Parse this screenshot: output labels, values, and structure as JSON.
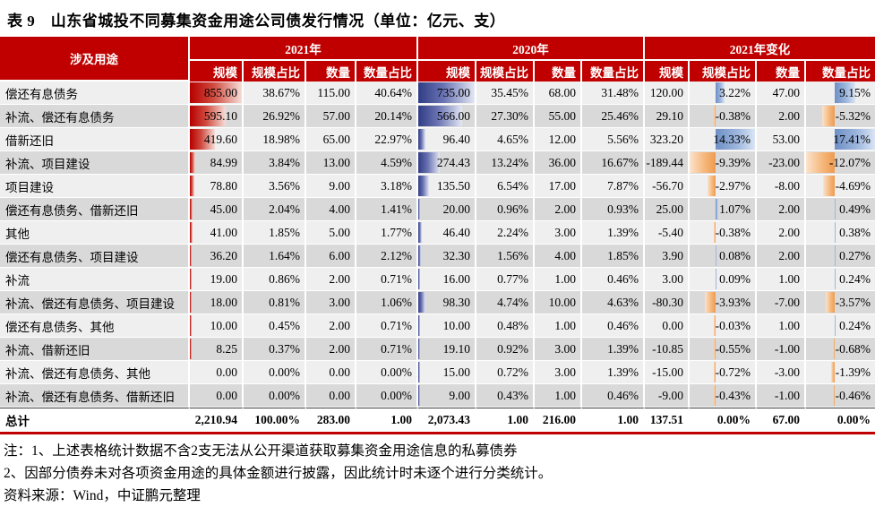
{
  "title": "表 9　山东省城投不同募集资金用途公司债发行情况（单位：亿元、支）",
  "table": {
    "category_header": "涉及用途",
    "groups": [
      "2021年",
      "2020年",
      "2021年变化"
    ],
    "subcols": [
      "规模",
      "规模占比",
      "数量",
      "数量占比"
    ],
    "rows": [
      {
        "use": "偿还有息债务",
        "v2021": [
          "855.00",
          "38.67%",
          "115.00",
          "40.64%"
        ],
        "v2020": [
          "735.00",
          "35.45%",
          "68.00",
          "31.48%"
        ],
        "change": [
          "120.00",
          "3.22%",
          "47.00",
          "9.15%"
        ]
      },
      {
        "use": "补流、偿还有息债务",
        "v2021": [
          "595.10",
          "26.92%",
          "57.00",
          "20.14%"
        ],
        "v2020": [
          "566.00",
          "27.30%",
          "55.00",
          "25.46%"
        ],
        "change": [
          "29.10",
          "-0.38%",
          "2.00",
          "-5.32%"
        ]
      },
      {
        "use": "借新还旧",
        "v2021": [
          "419.60",
          "18.98%",
          "65.00",
          "22.97%"
        ],
        "v2020": [
          "96.40",
          "4.65%",
          "12.00",
          "5.56%"
        ],
        "change": [
          "323.20",
          "14.33%",
          "53.00",
          "17.41%"
        ]
      },
      {
        "use": "补流、项目建设",
        "v2021": [
          "84.99",
          "3.84%",
          "13.00",
          "4.59%"
        ],
        "v2020": [
          "274.43",
          "13.24%",
          "36.00",
          "16.67%"
        ],
        "change": [
          "-189.44",
          "-9.39%",
          "-23.00",
          "-12.07%"
        ]
      },
      {
        "use": "项目建设",
        "v2021": [
          "78.80",
          "3.56%",
          "9.00",
          "3.18%"
        ],
        "v2020": [
          "135.50",
          "6.54%",
          "17.00",
          "7.87%"
        ],
        "change": [
          "-56.70",
          "-2.97%",
          "-8.00",
          "-4.69%"
        ]
      },
      {
        "use": "偿还有息债务、借新还旧",
        "v2021": [
          "45.00",
          "2.04%",
          "4.00",
          "1.41%"
        ],
        "v2020": [
          "20.00",
          "0.96%",
          "2.00",
          "0.93%"
        ],
        "change": [
          "25.00",
          "1.07%",
          "2.00",
          "0.49%"
        ]
      },
      {
        "use": "其他",
        "v2021": [
          "41.00",
          "1.85%",
          "5.00",
          "1.77%"
        ],
        "v2020": [
          "46.40",
          "2.24%",
          "3.00",
          "1.39%"
        ],
        "change": [
          "-5.40",
          "-0.38%",
          "2.00",
          "0.38%"
        ]
      },
      {
        "use": "偿还有息债务、项目建设",
        "v2021": [
          "36.20",
          "1.64%",
          "6.00",
          "2.12%"
        ],
        "v2020": [
          "32.30",
          "1.56%",
          "4.00",
          "1.85%"
        ],
        "change": [
          "3.90",
          "0.08%",
          "2.00",
          "0.27%"
        ]
      },
      {
        "use": "补流",
        "v2021": [
          "19.00",
          "0.86%",
          "2.00",
          "0.71%"
        ],
        "v2020": [
          "16.00",
          "0.77%",
          "1.00",
          "0.46%"
        ],
        "change": [
          "3.00",
          "0.09%",
          "1.00",
          "0.24%"
        ]
      },
      {
        "use": "补流、偿还有息债务、项目建设",
        "v2021": [
          "18.00",
          "0.81%",
          "3.00",
          "1.06%"
        ],
        "v2020": [
          "98.30",
          "4.74%",
          "10.00",
          "4.63%"
        ],
        "change": [
          "-80.30",
          "-3.93%",
          "-7.00",
          "-3.57%"
        ]
      },
      {
        "use": "偿还有息债务、其他",
        "v2021": [
          "10.00",
          "0.45%",
          "2.00",
          "0.71%"
        ],
        "v2020": [
          "10.00",
          "0.48%",
          "1.00",
          "0.46%"
        ],
        "change": [
          "0.00",
          "-0.03%",
          "1.00",
          "0.24%"
        ]
      },
      {
        "use": "补流、借新还旧",
        "v2021": [
          "8.25",
          "0.37%",
          "2.00",
          "0.71%"
        ],
        "v2020": [
          "19.10",
          "0.92%",
          "3.00",
          "1.39%"
        ],
        "change": [
          "-10.85",
          "-0.55%",
          "-1.00",
          "-0.68%"
        ]
      },
      {
        "use": "补流、偿还有息债务、其他",
        "v2021": [
          "0.00",
          "0.00%",
          "0.00",
          "0.00%"
        ],
        "v2020": [
          "15.00",
          "0.72%",
          "3.00",
          "1.39%"
        ],
        "change": [
          "-15.00",
          "-0.72%",
          "-3.00",
          "-1.39%"
        ]
      },
      {
        "use": "补流、偿还有息债务、借新还旧",
        "v2021": [
          "0.00",
          "0.00%",
          "0.00",
          "0.00%"
        ],
        "v2020": [
          "9.00",
          "0.43%",
          "1.00",
          "0.46%"
        ],
        "change": [
          "-9.00",
          "-0.43%",
          "-1.00",
          "-0.46%"
        ]
      }
    ],
    "total_row": {
      "use": "总计",
      "v2021": [
        "2,210.94",
        "100.00%",
        "283.00",
        "1.00"
      ],
      "v2020": [
        "2,073.43",
        "1.00",
        "216.00",
        "1.00"
      ],
      "change": [
        "137.51",
        "0.00%",
        "67.00",
        "0.00%"
      ]
    }
  },
  "notes": [
    "注：1、上述表格统计数据不含2支无法从公开渠道获取募集资金用途信息的私募债券",
    "2、因部分债券未对各项资金用途的具体金额进行披露，因此统计时未逐个进行分类统计。",
    "资料来源：Wind，中证鹏元整理"
  ],
  "colors": {
    "header_red": "#C00000",
    "bar_2021_scale": "#B80000",
    "bar_2020_scale": "#303C85",
    "bar_change_positive": "#6D8FC5",
    "bar_change_negative": "#EF9B4E",
    "row_stripe_light": "#EFEFEF",
    "row_stripe_dark": "#D9D9D9"
  }
}
